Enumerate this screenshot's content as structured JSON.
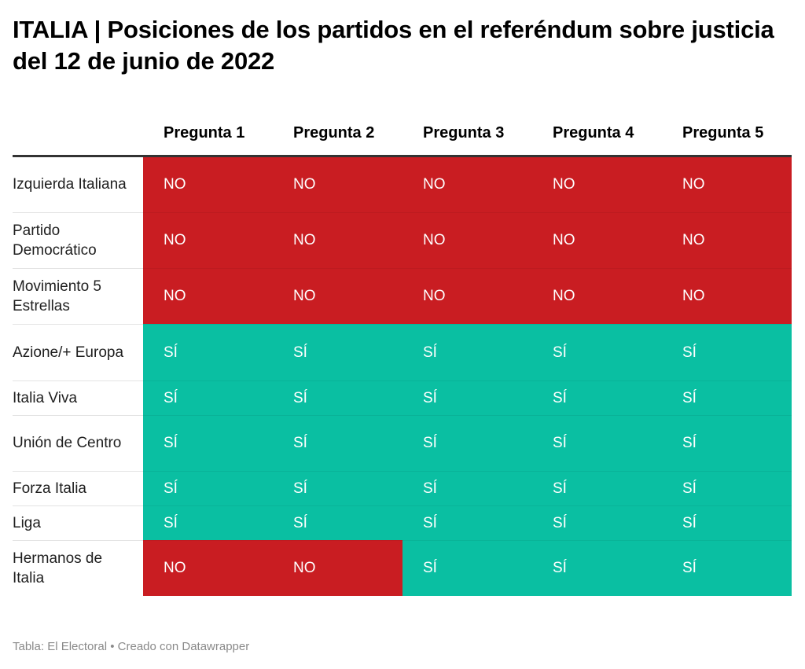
{
  "title": "ITALIA | Posiciones de los partidos en el referéndum sobre justicia del 12 de junio de 2022",
  "colors": {
    "no": "#c91d22",
    "si": "#0abfa2",
    "header_rule": "#333333"
  },
  "chart_data": {
    "type": "table",
    "columns": [
      "Pregunta 1",
      "Pregunta 2",
      "Pregunta 3",
      "Pregunta 4",
      "Pregunta 5"
    ],
    "rows": [
      {
        "party": "Izquierda Italiana",
        "values": [
          "NO",
          "NO",
          "NO",
          "NO",
          "NO"
        ]
      },
      {
        "party": "Partido Democrático",
        "values": [
          "NO",
          "NO",
          "NO",
          "NO",
          "NO"
        ]
      },
      {
        "party": "Movimiento 5 Estrellas",
        "values": [
          "NO",
          "NO",
          "NO",
          "NO",
          "NO"
        ]
      },
      {
        "party": "Azione/+ Europa",
        "values": [
          "SÍ",
          "SÍ",
          "SÍ",
          "SÍ",
          "SÍ"
        ]
      },
      {
        "party": "Italia Viva",
        "values": [
          "SÍ",
          "SÍ",
          "SÍ",
          "SÍ",
          "SÍ"
        ]
      },
      {
        "party": "Unión de Centro",
        "values": [
          "SÍ",
          "SÍ",
          "SÍ",
          "SÍ",
          "SÍ"
        ]
      },
      {
        "party": "Forza Italia",
        "values": [
          "SÍ",
          "SÍ",
          "SÍ",
          "SÍ",
          "SÍ"
        ]
      },
      {
        "party": "Liga",
        "values": [
          "SÍ",
          "SÍ",
          "SÍ",
          "SÍ",
          "SÍ"
        ]
      },
      {
        "party": "Hermanos de Italia",
        "values": [
          "NO",
          "NO",
          "SÍ",
          "SÍ",
          "SÍ"
        ]
      }
    ]
  },
  "footer": {
    "source": "Tabla: El Electoral • Creado con Datawrapper"
  }
}
